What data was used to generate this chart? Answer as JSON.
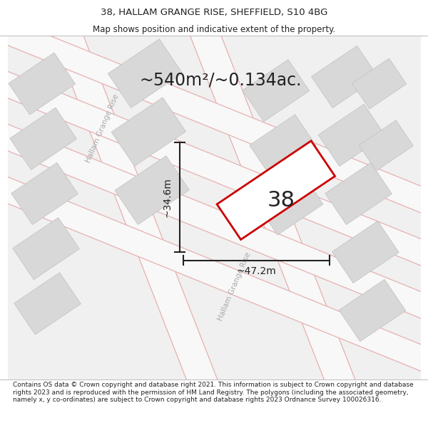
{
  "title_line1": "38, HALLAM GRANGE RISE, SHEFFIELD, S10 4BG",
  "title_line2": "Map shows position and indicative extent of the property.",
  "area_text": "~540m²/~0.134ac.",
  "width_label": "~47.2m",
  "height_label": "~34.6m",
  "number_label": "38",
  "footer_text": "Contains OS data © Crown copyright and database right 2021. This information is subject to Crown copyright and database rights 2023 and is reproduced with the permission of HM Land Registry. The polygons (including the associated geometry, namely x, y co-ordinates) are subject to Crown copyright and database rights 2023 Ordnance Survey 100026316.",
  "bg_color": "#f0f0f0",
  "map_bg": "#f0f0f0",
  "block_color": "#d8d8d8",
  "block_edge": "#c0c0c0",
  "road_fill": "#f8f8f8",
  "road_line": "#e8b0b0",
  "plot_fill": "#ffffff",
  "plot_outline": "#cc0000",
  "street_label": "Hallam Grange Rise",
  "text_color_dark": "#222222",
  "text_color_street": "#aaaaaa",
  "title_fs": 9.5,
  "subtitle_fs": 8.5,
  "area_fs": 17,
  "number_fs": 22,
  "dim_label_fs": 10,
  "street_fs": 7.5,
  "footer_fs": 6.5
}
